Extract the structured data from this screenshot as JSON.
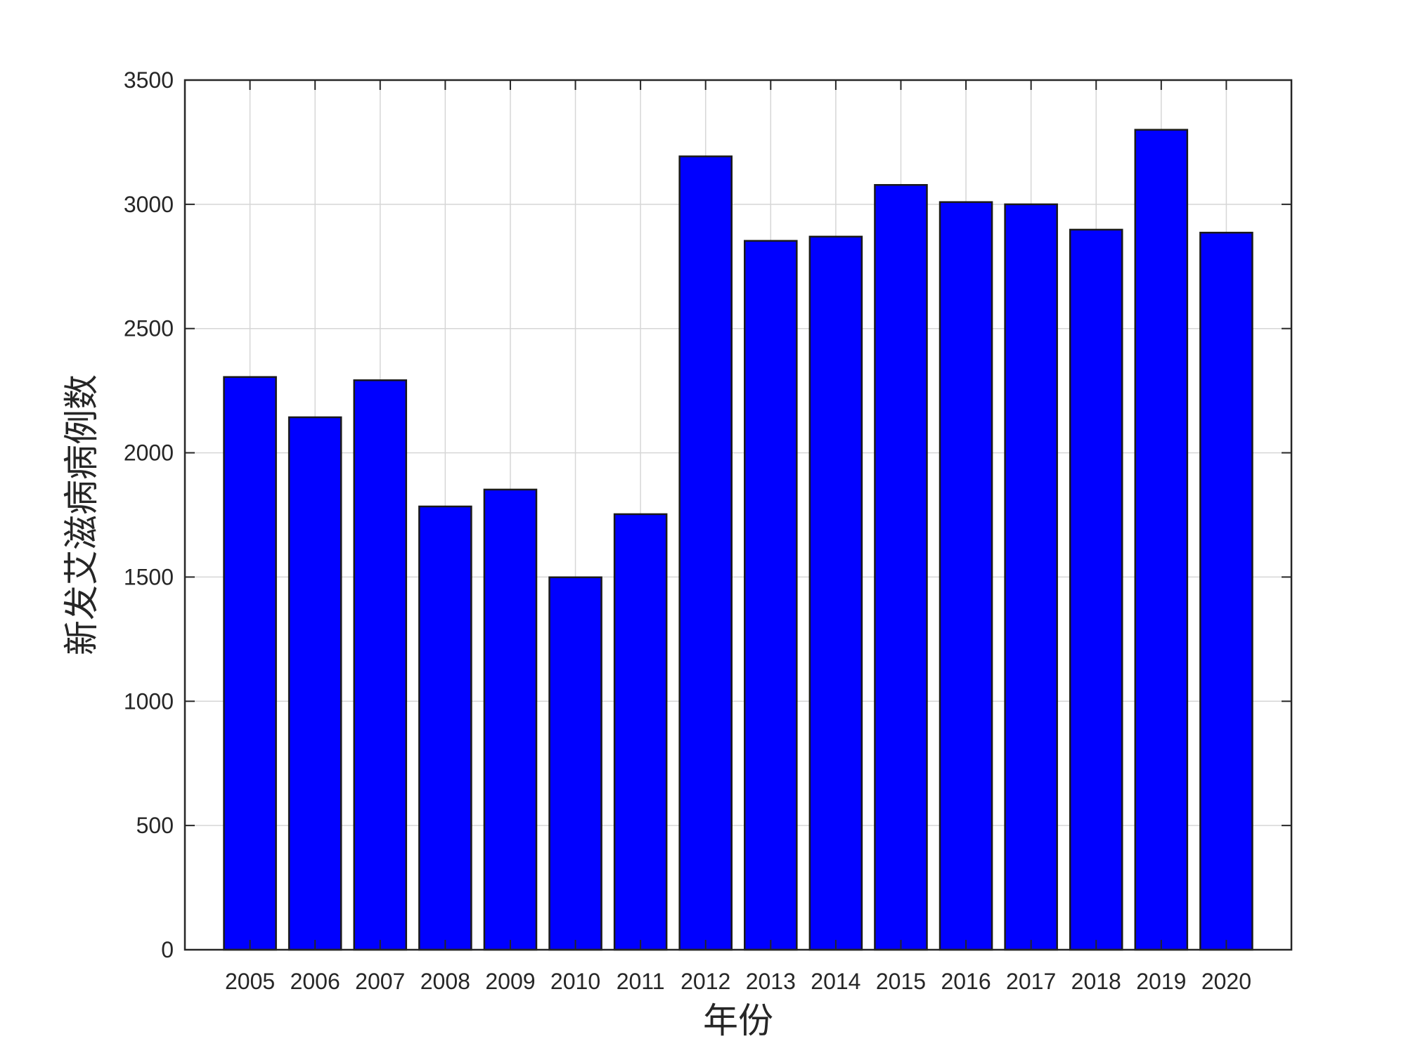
{
  "chart_data": {
    "type": "bar",
    "categories": [
      "2005",
      "2006",
      "2007",
      "2008",
      "2009",
      "2010",
      "2011",
      "2012",
      "2013",
      "2014",
      "2015",
      "2016",
      "2017",
      "2018",
      "2019",
      "2020"
    ],
    "values": [
      2305,
      2143,
      2292,
      1784,
      1852,
      1499,
      1753,
      3193,
      2853,
      2870,
      3078,
      3009,
      3000,
      2898,
      3300,
      2886
    ],
    "title": "",
    "xlabel": "年份",
    "ylabel": "新发艾滋病病例数",
    "ylim": [
      0,
      3500
    ],
    "yticks": [
      0,
      500,
      1000,
      1500,
      2000,
      2500,
      3000,
      3500
    ],
    "grid": true,
    "bar_color": "#0000ff",
    "edge_color": "#1a1a1a"
  }
}
